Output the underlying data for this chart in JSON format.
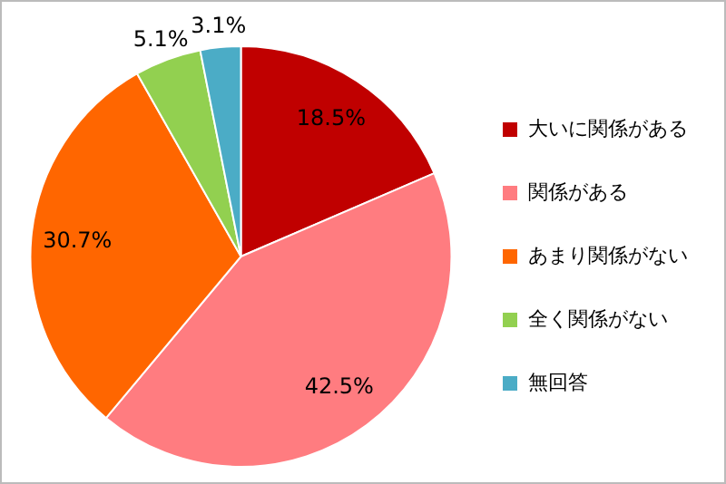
{
  "chart_data": {
    "type": "pie",
    "categories": [
      "大いに関係がある",
      "関係がある",
      "あまり関係がない",
      "全く関係がない",
      "無回答"
    ],
    "values": [
      18.5,
      42.5,
      30.7,
      5.1,
      3.1
    ],
    "colors": [
      "#c00000",
      "#ff7c80",
      "#ff6600",
      "#92d050",
      "#4bacc6"
    ],
    "value_labels": [
      "18.5%",
      "42.5%",
      "30.7%",
      "5.1%",
      "3.1%"
    ],
    "legend": "right"
  }
}
